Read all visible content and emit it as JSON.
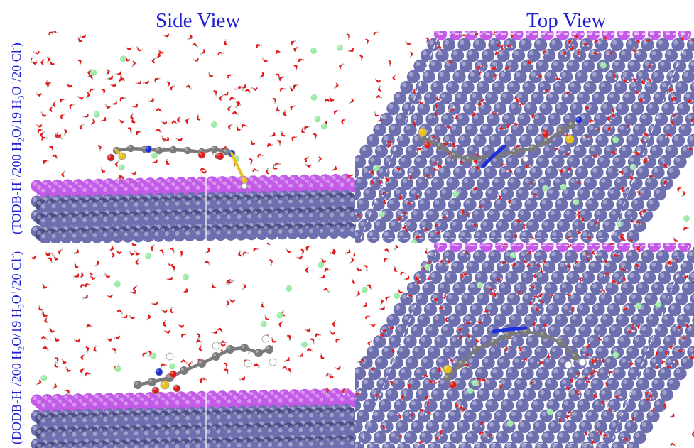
{
  "titles": {
    "side": "Side View",
    "top": "Top View"
  },
  "row_labels": {
    "top": {
      "prefix": "(TODB-H",
      "charge_sup": "+",
      "mid1": "/200 H",
      "h2_sub": "2",
      "mid2": "O/19 H",
      "h3_sub": "3",
      "mid3": "O",
      "ion_sup": "+",
      "suffix": "/20 Cl",
      "cl_sup": "-",
      "close": ")"
    },
    "bottom": {
      "prefix": "(DODB-H",
      "charge_sup": "+",
      "mid1": "/200 H",
      "h2_sub": "2",
      "mid2": "O/19 H",
      "h3_sub": "3",
      "mid3": "O",
      "ion_sup": "+",
      "suffix": "/20 Cl",
      "cl_sup": "-",
      "close": ")"
    }
  },
  "colors": {
    "title_text": "#1f1fd6",
    "label_text": "#1f1fd6",
    "metal_top_layer": "#c35be8",
    "metal_atom": "#6e6fae",
    "metal_atom_dark": "#4c4d86",
    "water_oxygen": "#e31b1b",
    "water_hydrogen": "#f2f2f2",
    "chloride": "#9ee8a8",
    "carbon": "#7a7a7a",
    "nitrogen": "#1c2fd9",
    "sulfur": "#e6c21a",
    "molecule_label": "#d13ad6"
  },
  "icons": {
    "panel": "molecular-dynamics-snapshot"
  }
}
